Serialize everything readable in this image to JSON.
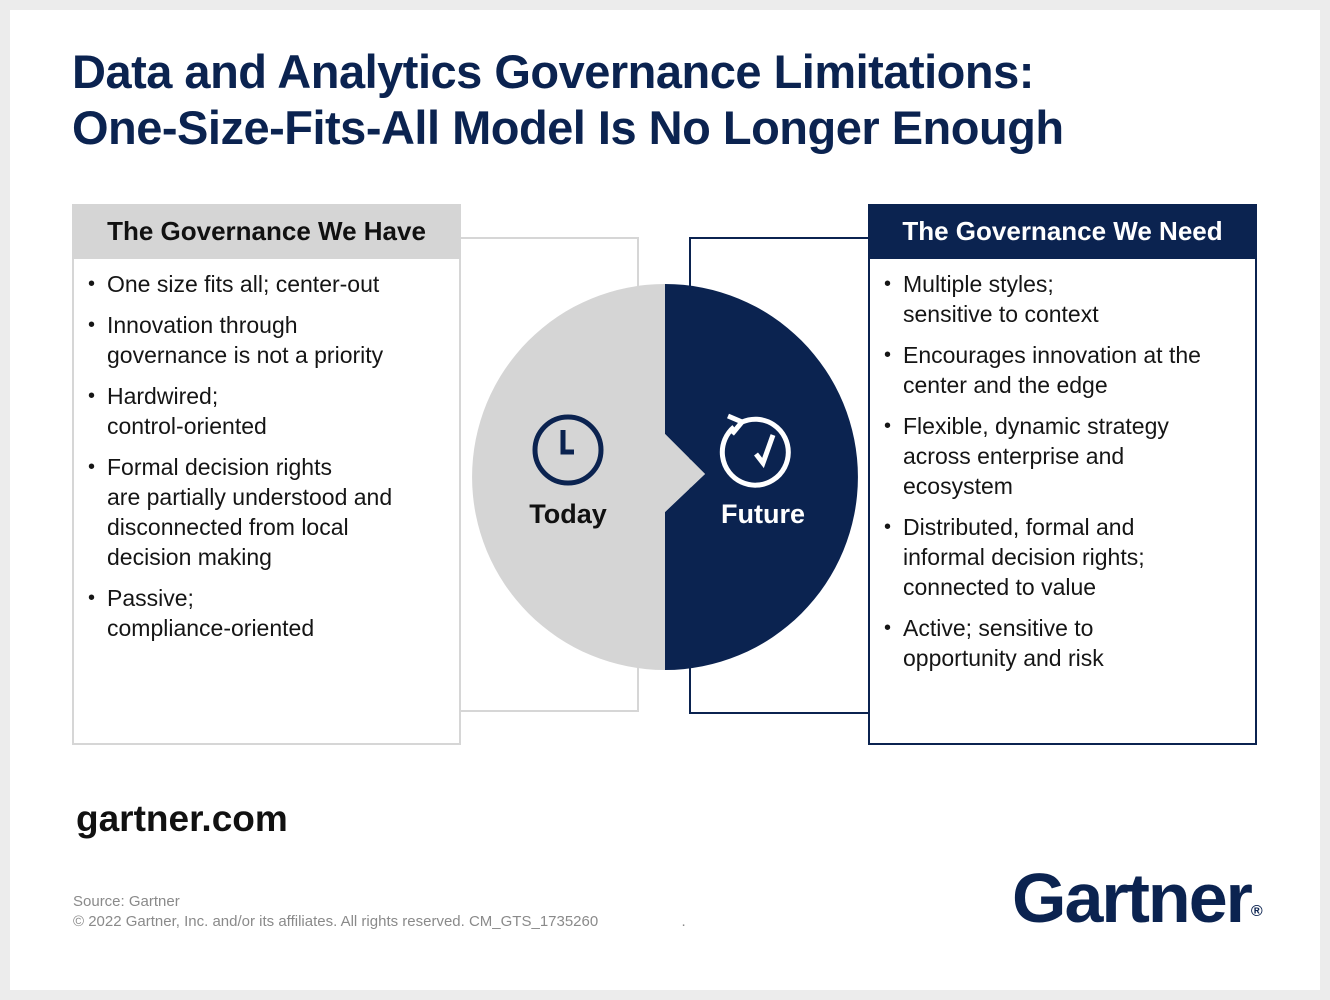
{
  "title": {
    "line1": "Data and Analytics Governance Limitations:",
    "line2": "One-Size-Fits-All Model Is No Longer Enough"
  },
  "left_panel": {
    "heading": "The Governance We Have",
    "items": [
      "One size fits all; center-out",
      "Innovation through\ngovernance is not a priority",
      "Hardwired;\ncontrol-oriented",
      "Formal decision rights\nare partially understood and\ndisconnected from local\ndecision making",
      "Passive;\ncompliance-oriented"
    ]
  },
  "right_panel": {
    "heading": "The Governance We Need",
    "items": [
      "Multiple styles;\nsensitive to context",
      "Encourages innovation at the\ncenter and the edge",
      "Flexible, dynamic strategy\nacross enterprise and\necosystem",
      "Distributed, formal and\ninformal decision rights;\nconnected to value",
      "Active; sensitive to\nopportunity and risk"
    ]
  },
  "center": {
    "today_label": "Today",
    "future_label": "Future",
    "today_icon": "clock-icon",
    "future_icon": "refresh-check-icon"
  },
  "footer": {
    "site": "gartner.com",
    "source": "Source: Gartner",
    "copyright": "© 2022 Gartner, Inc. and/or its affiliates. All rights reserved. CM_GTS_1735260                    .",
    "logo": "Gartner",
    "logo_mark": "®"
  },
  "colors": {
    "navy": "#0b2350",
    "gray": "#d5d5d5",
    "background": "#ececec"
  }
}
